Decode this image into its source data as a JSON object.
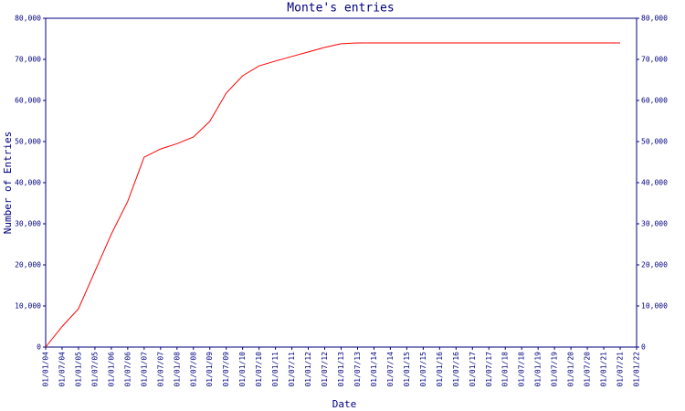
{
  "chart_data": {
    "type": "line",
    "title": "Monte's entries",
    "x_label": "Date",
    "y_label": "Number of Entries",
    "x": [
      "01/01/04",
      "01/07/04",
      "01/01/05",
      "01/07/05",
      "01/01/06",
      "01/07/06",
      "01/01/07",
      "01/07/07",
      "01/01/08",
      "01/07/08",
      "01/01/09",
      "01/07/09",
      "01/01/10",
      "01/07/10",
      "01/01/11",
      "01/07/11",
      "01/01/12",
      "01/07/12",
      "01/01/13",
      "01/07/13",
      "01/01/14",
      "01/07/14",
      "01/01/15",
      "01/07/15",
      "01/01/16",
      "01/07/16",
      "01/01/17",
      "01/07/17",
      "01/01/18",
      "01/07/18",
      "01/01/19",
      "01/07/19",
      "01/01/20",
      "01/07/20",
      "01/01/21",
      "01/07/21"
    ],
    "series": [
      {
        "name": "Monte",
        "color": "#ff0000",
        "values": [
          0,
          5000,
          9300,
          18400,
          27500,
          35500,
          46200,
          48200,
          49500,
          51100,
          54900,
          61800,
          66000,
          68400,
          69600,
          70700,
          71800,
          72900,
          73800,
          74000,
          74000,
          74000,
          74000,
          74000,
          74000,
          74000,
          74000,
          74000,
          74000,
          74000,
          74000,
          74000,
          74000,
          74000,
          74000,
          74000
        ]
      }
    ],
    "xticks": [
      "01/01/04",
      "01/07/04",
      "01/01/05",
      "01/07/05",
      "01/01/06",
      "01/07/06",
      "01/01/07",
      "01/07/07",
      "01/01/08",
      "01/07/08",
      "01/01/09",
      "01/07/09",
      "01/01/10",
      "01/07/10",
      "01/01/11",
      "01/07/11",
      "01/01/12",
      "01/07/12",
      "01/01/13",
      "01/07/13",
      "01/01/14",
      "01/07/14",
      "01/01/15",
      "01/07/15",
      "01/01/16",
      "01/07/16",
      "01/01/17",
      "01/07/17",
      "01/01/18",
      "01/07/18",
      "01/01/19",
      "01/07/19",
      "01/01/20",
      "01/07/20",
      "01/01/21",
      "01/07/21",
      "01/01/22"
    ],
    "ylim": [
      0,
      80000
    ],
    "yticks": [
      0,
      {
        "value": 10000,
        "label": "10,000"
      },
      {
        "value": 20000,
        "label": "20,000"
      },
      {
        "value": 30000,
        "label": "30,000"
      },
      {
        "value": 40000,
        "label": "40,000"
      },
      {
        "value": 50000,
        "label": "50,000"
      },
      {
        "value": 60000,
        "label": "60,000"
      },
      {
        "value": 70000,
        "label": "70,000"
      },
      {
        "value": 80000,
        "label": "80,000"
      }
    ],
    "axis_color": "#000080"
  }
}
